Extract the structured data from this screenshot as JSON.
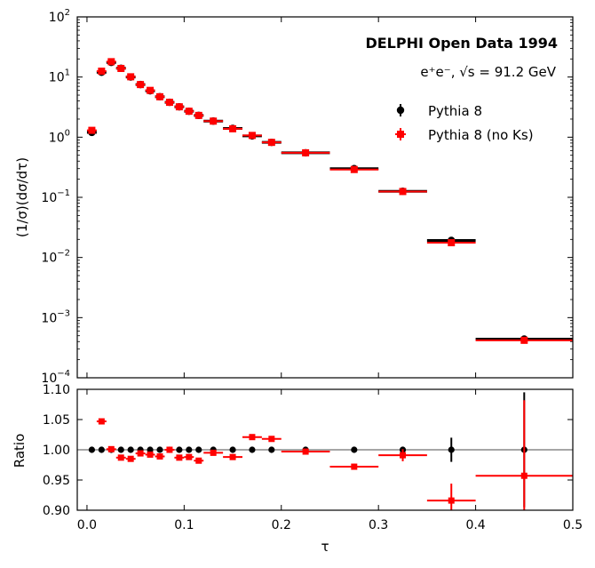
{
  "chart_data": [
    {
      "type": "scatter",
      "panel": "main",
      "title": "DELPHI Open Data 1994",
      "subtitle": "e⁺e⁻, √s = 91.2 GeV",
      "ylabel": "(1/σ)(dσ/dτ)",
      "yscale": "log",
      "xlim": [
        -0.01,
        0.5
      ],
      "ylim": [
        0.0001,
        100
      ],
      "yticks": [
        {
          "value": 0.0001,
          "base": "10",
          "exp": "−4"
        },
        {
          "value": 0.001,
          "base": "10",
          "exp": "−3"
        },
        {
          "value": 0.01,
          "base": "10",
          "exp": "−2"
        },
        {
          "value": 0.1,
          "base": "10",
          "exp": "−1"
        },
        {
          "value": 1,
          "base": "10",
          "exp": "0"
        },
        {
          "value": 10,
          "base": "10",
          "exp": "1"
        },
        {
          "value": 100,
          "base": "10",
          "exp": "2"
        }
      ],
      "legend": {
        "placement": "top-right"
      },
      "series": [
        {
          "name": "Pythia 8",
          "color": "#000000",
          "marker": "circle",
          "x": [
            0.005,
            0.015,
            0.025,
            0.035,
            0.045,
            0.055,
            0.065,
            0.075,
            0.085,
            0.095,
            0.105,
            0.115,
            0.13,
            0.15,
            0.17,
            0.19,
            0.225,
            0.275,
            0.325,
            0.375,
            0.45
          ],
          "xerr": [
            0.005,
            0.005,
            0.005,
            0.005,
            0.005,
            0.005,
            0.005,
            0.005,
            0.005,
            0.005,
            0.005,
            0.005,
            0.01,
            0.01,
            0.01,
            0.01,
            0.025,
            0.025,
            0.025,
            0.025,
            0.05
          ],
          "y": [
            1.2,
            12.0,
            17.5,
            14.0,
            10.0,
            7.5,
            5.9,
            4.7,
            3.8,
            3.2,
            2.7,
            2.3,
            1.85,
            1.4,
            1.05,
            0.82,
            0.55,
            0.3,
            0.126,
            0.0192,
            0.00044
          ],
          "yerr_frac": [
            0.02,
            0.02,
            0.02,
            0.02,
            0.02,
            0.02,
            0.02,
            0.02,
            0.02,
            0.02,
            0.02,
            0.02,
            0.02,
            0.02,
            0.02,
            0.02,
            0.02,
            0.03,
            0.04,
            0.06,
            0.09
          ]
        },
        {
          "name": "Pythia 8 (no Ks)",
          "color": "#ff0000",
          "marker": "square",
          "x": [
            0.005,
            0.015,
            0.025,
            0.035,
            0.045,
            0.055,
            0.065,
            0.075,
            0.085,
            0.095,
            0.105,
            0.115,
            0.13,
            0.15,
            0.17,
            0.19,
            0.225,
            0.275,
            0.325,
            0.375,
            0.45
          ],
          "xerr": [
            0.005,
            0.005,
            0.005,
            0.005,
            0.005,
            0.005,
            0.005,
            0.005,
            0.005,
            0.005,
            0.005,
            0.005,
            0.01,
            0.01,
            0.01,
            0.01,
            0.025,
            0.025,
            0.025,
            0.025,
            0.05
          ],
          "y": [
            1.3,
            12.5,
            18.0,
            13.9,
            10.1,
            7.5,
            6.0,
            4.7,
            3.8,
            3.2,
            2.7,
            2.3,
            1.85,
            1.38,
            1.07,
            0.82,
            0.55,
            0.29,
            0.125,
            0.0176,
            0.00042
          ],
          "yerr_frac": [
            0.03,
            0.03,
            0.03,
            0.03,
            0.03,
            0.03,
            0.03,
            0.03,
            0.03,
            0.03,
            0.03,
            0.03,
            0.03,
            0.03,
            0.03,
            0.03,
            0.03,
            0.04,
            0.05,
            0.08,
            0.12
          ]
        }
      ]
    },
    {
      "type": "scatter",
      "panel": "ratio",
      "xlabel": "τ",
      "ylabel": "Ratio",
      "xlim": [
        -0.01,
        0.5
      ],
      "ylim": [
        0.9,
        1.1
      ],
      "xticks": [
        {
          "value": 0.0,
          "label": "0.0"
        },
        {
          "value": 0.1,
          "label": "0.1"
        },
        {
          "value": 0.2,
          "label": "0.2"
        },
        {
          "value": 0.3,
          "label": "0.3"
        },
        {
          "value": 0.4,
          "label": "0.4"
        },
        {
          "value": 0.5,
          "label": "0.5"
        }
      ],
      "yticks": [
        {
          "value": 0.9,
          "label": "0.90"
        },
        {
          "value": 0.95,
          "label": "0.95"
        },
        {
          "value": 1.0,
          "label": "1.00"
        },
        {
          "value": 1.05,
          "label": "1.05"
        },
        {
          "value": 1.1,
          "label": "1.10"
        }
      ],
      "reference_line": 1.0,
      "series": [
        {
          "name": "Pythia 8",
          "color": "#000000",
          "marker": "circle",
          "x": [
            0.005,
            0.015,
            0.025,
            0.035,
            0.045,
            0.055,
            0.065,
            0.075,
            0.085,
            0.095,
            0.105,
            0.115,
            0.13,
            0.15,
            0.17,
            0.19,
            0.225,
            0.275,
            0.325,
            0.375,
            0.45
          ],
          "y": [
            1,
            1,
            1,
            1,
            1,
            1,
            1,
            1,
            1,
            1,
            1,
            1,
            1,
            1,
            1,
            1,
            1,
            1,
            1,
            1,
            1
          ],
          "yerr": [
            0.001,
            0.001,
            0.001,
            0.001,
            0.001,
            0.001,
            0.001,
            0.001,
            0.001,
            0.001,
            0.001,
            0.001,
            0.001,
            0.001,
            0.001,
            0.001,
            0.002,
            0.002,
            0.004,
            0.02,
            0.095
          ]
        },
        {
          "name": "Pythia 8 (no Ks)",
          "color": "#ff0000",
          "marker": "square",
          "x": [
            0.015,
            0.025,
            0.035,
            0.045,
            0.055,
            0.065,
            0.075,
            0.085,
            0.095,
            0.105,
            0.115,
            0.13,
            0.15,
            0.17,
            0.19,
            0.225,
            0.275,
            0.325,
            0.375,
            0.45
          ],
          "xerr": [
            0.005,
            0.005,
            0.005,
            0.005,
            0.005,
            0.005,
            0.005,
            0.005,
            0.005,
            0.005,
            0.005,
            0.01,
            0.01,
            0.01,
            0.01,
            0.025,
            0.025,
            0.025,
            0.025,
            0.05
          ],
          "y": [
            1.047,
            1.001,
            0.987,
            0.985,
            0.994,
            0.992,
            0.989,
            1.0,
            0.987,
            0.988,
            0.982,
            0.995,
            0.988,
            1.021,
            1.018,
            0.997,
            0.972,
            0.991,
            0.916,
            0.957
          ],
          "yerr": [
            0.003,
            0.003,
            0.003,
            0.003,
            0.003,
            0.003,
            0.003,
            0.003,
            0.003,
            0.003,
            0.003,
            0.003,
            0.003,
            0.003,
            0.003,
            0.003,
            0.005,
            0.01,
            0.028,
            0.125
          ]
        }
      ]
    }
  ]
}
